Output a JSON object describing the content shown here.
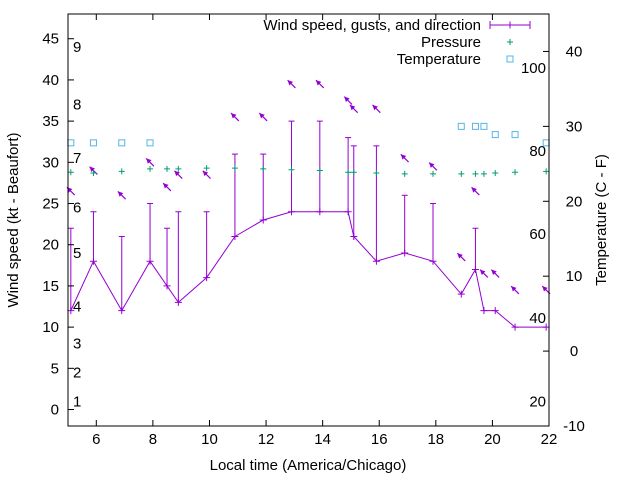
{
  "chart_data": {
    "type": "line",
    "xlabel": "Local time (America/Chicago)",
    "ylabel": "Wind speed (kt - Beaufort)",
    "y2label": "Temperature (C - F)",
    "xlim": [
      5,
      22
    ],
    "ylim": [
      -2,
      48
    ],
    "y2lim": [
      -10,
      45
    ],
    "x_ticks": [
      6,
      8,
      10,
      12,
      14,
      16,
      18,
      20,
      22
    ],
    "y_ticks": [
      0,
      5,
      10,
      15,
      20,
      25,
      30,
      35,
      40,
      45
    ],
    "y2_ticks": [
      -10,
      0,
      10,
      20,
      30,
      40
    ],
    "fahrenheit_ticks": [
      {
        "label": "20",
        "c": -6.7
      },
      {
        "label": "40",
        "c": 4.4
      },
      {
        "label": "60",
        "c": 15.6
      },
      {
        "label": "80",
        "c": 26.7
      },
      {
        "label": "100",
        "c": 37.8
      }
    ],
    "beaufort_ticks": [
      {
        "label": "1",
        "kt": 1
      },
      {
        "label": "2",
        "kt": 4.5
      },
      {
        "label": "3",
        "kt": 8
      },
      {
        "label": "4",
        "kt": 12.5
      },
      {
        "label": "5",
        "kt": 19
      },
      {
        "label": "6",
        "kt": 24.5
      },
      {
        "label": "7",
        "kt": 30.5
      },
      {
        "label": "8",
        "kt": 37
      },
      {
        "label": "9",
        "kt": 44
      }
    ],
    "legend": {
      "position": "top-right",
      "entries": [
        "Wind speed, gusts, and direction",
        "Pressure",
        "Temperature"
      ]
    },
    "colors": {
      "wind": "#9400d3",
      "pressure": "#009e73",
      "temperature": "#56b4e9"
    },
    "wind": [
      {
        "x": 5.1,
        "speed": 12,
        "gust": 22
      },
      {
        "x": 5.9,
        "speed": 18,
        "gust": 24
      },
      {
        "x": 6.9,
        "speed": 12,
        "gust": 21
      },
      {
        "x": 7.9,
        "speed": 18,
        "gust": 25
      },
      {
        "x": 8.5,
        "speed": 15,
        "gust": 22
      },
      {
        "x": 8.9,
        "speed": 13,
        "gust": 24
      },
      {
        "x": 9.9,
        "speed": 16,
        "gust": 24
      },
      {
        "x": 10.9,
        "speed": 21,
        "gust": 31
      },
      {
        "x": 11.9,
        "speed": 23,
        "gust": 31
      },
      {
        "x": 12.9,
        "speed": 24,
        "gust": 35
      },
      {
        "x": 13.9,
        "speed": 24,
        "gust": 35
      },
      {
        "x": 14.9,
        "speed": 24,
        "gust": 33
      },
      {
        "x": 15.1,
        "speed": 21,
        "gust": 32
      },
      {
        "x": 15.9,
        "speed": 18,
        "gust": 32
      },
      {
        "x": 16.9,
        "speed": 19,
        "gust": 26
      },
      {
        "x": 17.9,
        "speed": 18,
        "gust": 25
      },
      {
        "x": 18.9,
        "speed": 14,
        "gust": null
      },
      {
        "x": 19.4,
        "speed": 17,
        "gust": 22
      },
      {
        "x": 19.7,
        "speed": 12,
        "gust": null
      },
      {
        "x": 20.1,
        "speed": 12,
        "gust": null
      },
      {
        "x": 20.8,
        "speed": 10,
        "gust": null
      },
      {
        "x": 21.9,
        "speed": 10,
        "gust": null
      }
    ],
    "direction_arrows": [
      {
        "x": 5.1,
        "y": 26.5,
        "angle": 135
      },
      {
        "x": 5.9,
        "y": 29,
        "angle": 135
      },
      {
        "x": 6.9,
        "y": 26,
        "angle": 135
      },
      {
        "x": 7.9,
        "y": 30,
        "angle": 135
      },
      {
        "x": 8.5,
        "y": 27,
        "angle": 135
      },
      {
        "x": 8.9,
        "y": 28.5,
        "angle": 135
      },
      {
        "x": 9.9,
        "y": 28.5,
        "angle": 135
      },
      {
        "x": 10.9,
        "y": 35.5,
        "angle": 135
      },
      {
        "x": 11.9,
        "y": 35.5,
        "angle": 135
      },
      {
        "x": 12.9,
        "y": 39.5,
        "angle": 135
      },
      {
        "x": 13.9,
        "y": 39.5,
        "angle": 135
      },
      {
        "x": 14.9,
        "y": 37.5,
        "angle": 135
      },
      {
        "x": 15.1,
        "y": 36.5,
        "angle": 135
      },
      {
        "x": 15.9,
        "y": 36.5,
        "angle": 135
      },
      {
        "x": 16.9,
        "y": 30.5,
        "angle": 135
      },
      {
        "x": 17.9,
        "y": 29.5,
        "angle": 135
      },
      {
        "x": 18.9,
        "y": 18.5,
        "angle": 135
      },
      {
        "x": 19.4,
        "y": 26.5,
        "angle": 135
      },
      {
        "x": 19.7,
        "y": 16.5,
        "angle": 135
      },
      {
        "x": 20.1,
        "y": 16.5,
        "angle": 135
      },
      {
        "x": 20.8,
        "y": 14.5,
        "angle": 135
      },
      {
        "x": 21.9,
        "y": 14.5,
        "angle": 135
      }
    ],
    "pressure": [
      {
        "x": 5.1,
        "y": 28.8
      },
      {
        "x": 5.9,
        "y": 28.7
      },
      {
        "x": 6.9,
        "y": 28.9
      },
      {
        "x": 7.9,
        "y": 29.2
      },
      {
        "x": 8.5,
        "y": 29.2
      },
      {
        "x": 8.9,
        "y": 29.2
      },
      {
        "x": 9.9,
        "y": 29.3
      },
      {
        "x": 10.9,
        "y": 29.3
      },
      {
        "x": 11.9,
        "y": 29.2
      },
      {
        "x": 12.9,
        "y": 29.1
      },
      {
        "x": 13.9,
        "y": 29.0
      },
      {
        "x": 14.9,
        "y": 28.8
      },
      {
        "x": 15.1,
        "y": 28.8
      },
      {
        "x": 15.9,
        "y": 28.7
      },
      {
        "x": 16.9,
        "y": 28.6
      },
      {
        "x": 17.9,
        "y": 28.6
      },
      {
        "x": 18.9,
        "y": 28.6
      },
      {
        "x": 19.4,
        "y": 28.6
      },
      {
        "x": 19.7,
        "y": 28.6
      },
      {
        "x": 20.1,
        "y": 28.7
      },
      {
        "x": 20.8,
        "y": 28.8
      },
      {
        "x": 21.9,
        "y": 28.9
      }
    ],
    "temperature_c": [
      {
        "x": 5.1,
        "t": 27.8
      },
      {
        "x": 5.9,
        "t": 27.8
      },
      {
        "x": 6.9,
        "t": 27.8
      },
      {
        "x": 7.9,
        "t": 27.8
      },
      {
        "x": 18.9,
        "t": 30.0
      },
      {
        "x": 19.4,
        "t": 30.0
      },
      {
        "x": 19.7,
        "t": 30.0
      },
      {
        "x": 20.1,
        "t": 28.9
      },
      {
        "x": 20.8,
        "t": 28.9
      },
      {
        "x": 21.9,
        "t": 27.8
      }
    ]
  }
}
